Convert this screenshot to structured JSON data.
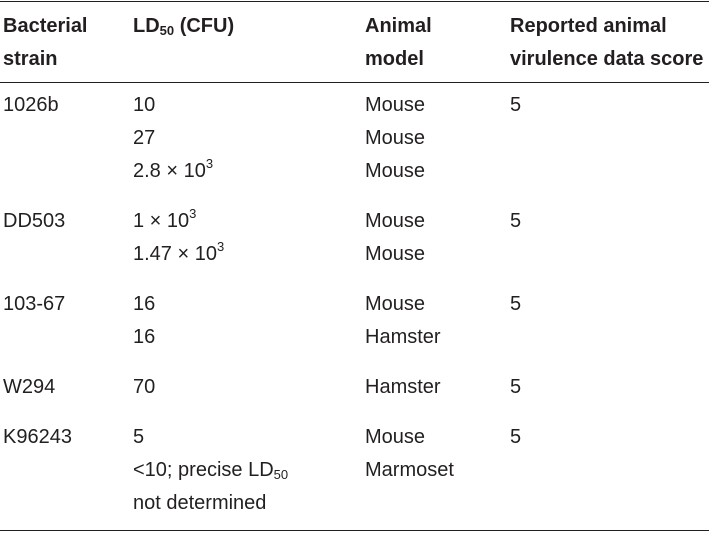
{
  "header": {
    "strain": [
      "Bacterial",
      "strain"
    ],
    "ld50": {
      "main": "LD",
      "sub": "50",
      "tail": " (CFU)"
    },
    "model": [
      "Animal",
      "model"
    ],
    "score": [
      "Reported animal",
      "virulence data score"
    ]
  },
  "rows": [
    {
      "strain": "1026b",
      "score": "5",
      "ld50": [
        {
          "text": "10"
        },
        {
          "text": "27"
        },
        {
          "text": "2.8 × 10",
          "sup": "3"
        }
      ],
      "model": [
        "Mouse",
        "Mouse",
        "Mouse"
      ]
    },
    {
      "strain": "DD503",
      "score": "5",
      "ld50": [
        {
          "text": "1 × 10",
          "sup": "3"
        },
        {
          "text": "1.47 × 10",
          "sup": "3"
        }
      ],
      "model": [
        "Mouse",
        "Mouse"
      ]
    },
    {
      "strain": "103-67",
      "score": "5",
      "ld50": [
        {
          "text": "16"
        },
        {
          "text": "16"
        }
      ],
      "model": [
        "Mouse",
        "Hamster"
      ]
    },
    {
      "strain": "W294",
      "score": "5",
      "ld50": [
        {
          "text": "70"
        }
      ],
      "model": [
        "Hamster"
      ]
    },
    {
      "strain": "K96243",
      "score": "5",
      "ld50": [
        {
          "text": "5"
        },
        {
          "text": "<10; precise LD",
          "sub": "50"
        },
        {
          "text": "not determined"
        }
      ],
      "model": [
        "Mouse",
        "Marmoset"
      ]
    }
  ]
}
